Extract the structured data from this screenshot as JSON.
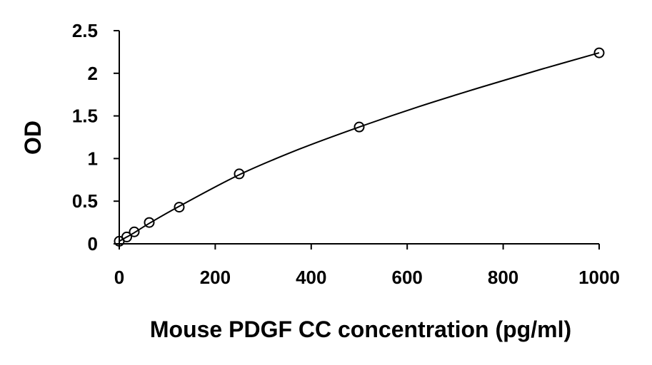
{
  "chart_data": {
    "type": "scatter",
    "title": "",
    "xlabel": "Mouse PDGF CC concentration (pg/ml)",
    "ylabel": "OD",
    "xlim": [
      0,
      1000
    ],
    "ylim": [
      0,
      2.5
    ],
    "x_ticks": [
      0,
      200,
      400,
      600,
      800,
      1000
    ],
    "x_tick_labels": [
      "0",
      "200",
      "400",
      "600",
      "800",
      "1000"
    ],
    "y_ticks": [
      0,
      0.5,
      1,
      1.5,
      2,
      2.5
    ],
    "y_tick_labels": [
      "0",
      "0.5",
      "1",
      "1.5",
      "2",
      "2.5"
    ],
    "grid": false,
    "legend": "none",
    "series": [
      {
        "x": [
          0,
          15.6,
          31.25,
          62.5,
          125,
          250,
          500,
          1000
        ],
        "y": [
          0.03,
          0.08,
          0.14,
          0.25,
          0.43,
          0.82,
          1.37,
          2.24
        ],
        "marker": "open-circle",
        "color": "#000000"
      }
    ],
    "trendline": {
      "x": [
        0,
        15.6,
        31.25,
        62.5,
        125,
        250,
        375,
        500,
        625,
        750,
        875,
        1000
      ],
      "y": [
        0.03,
        0.08,
        0.13,
        0.24,
        0.44,
        0.81,
        1.11,
        1.37,
        1.61,
        1.83,
        2.04,
        2.24
      ],
      "color": "#000000"
    }
  }
}
